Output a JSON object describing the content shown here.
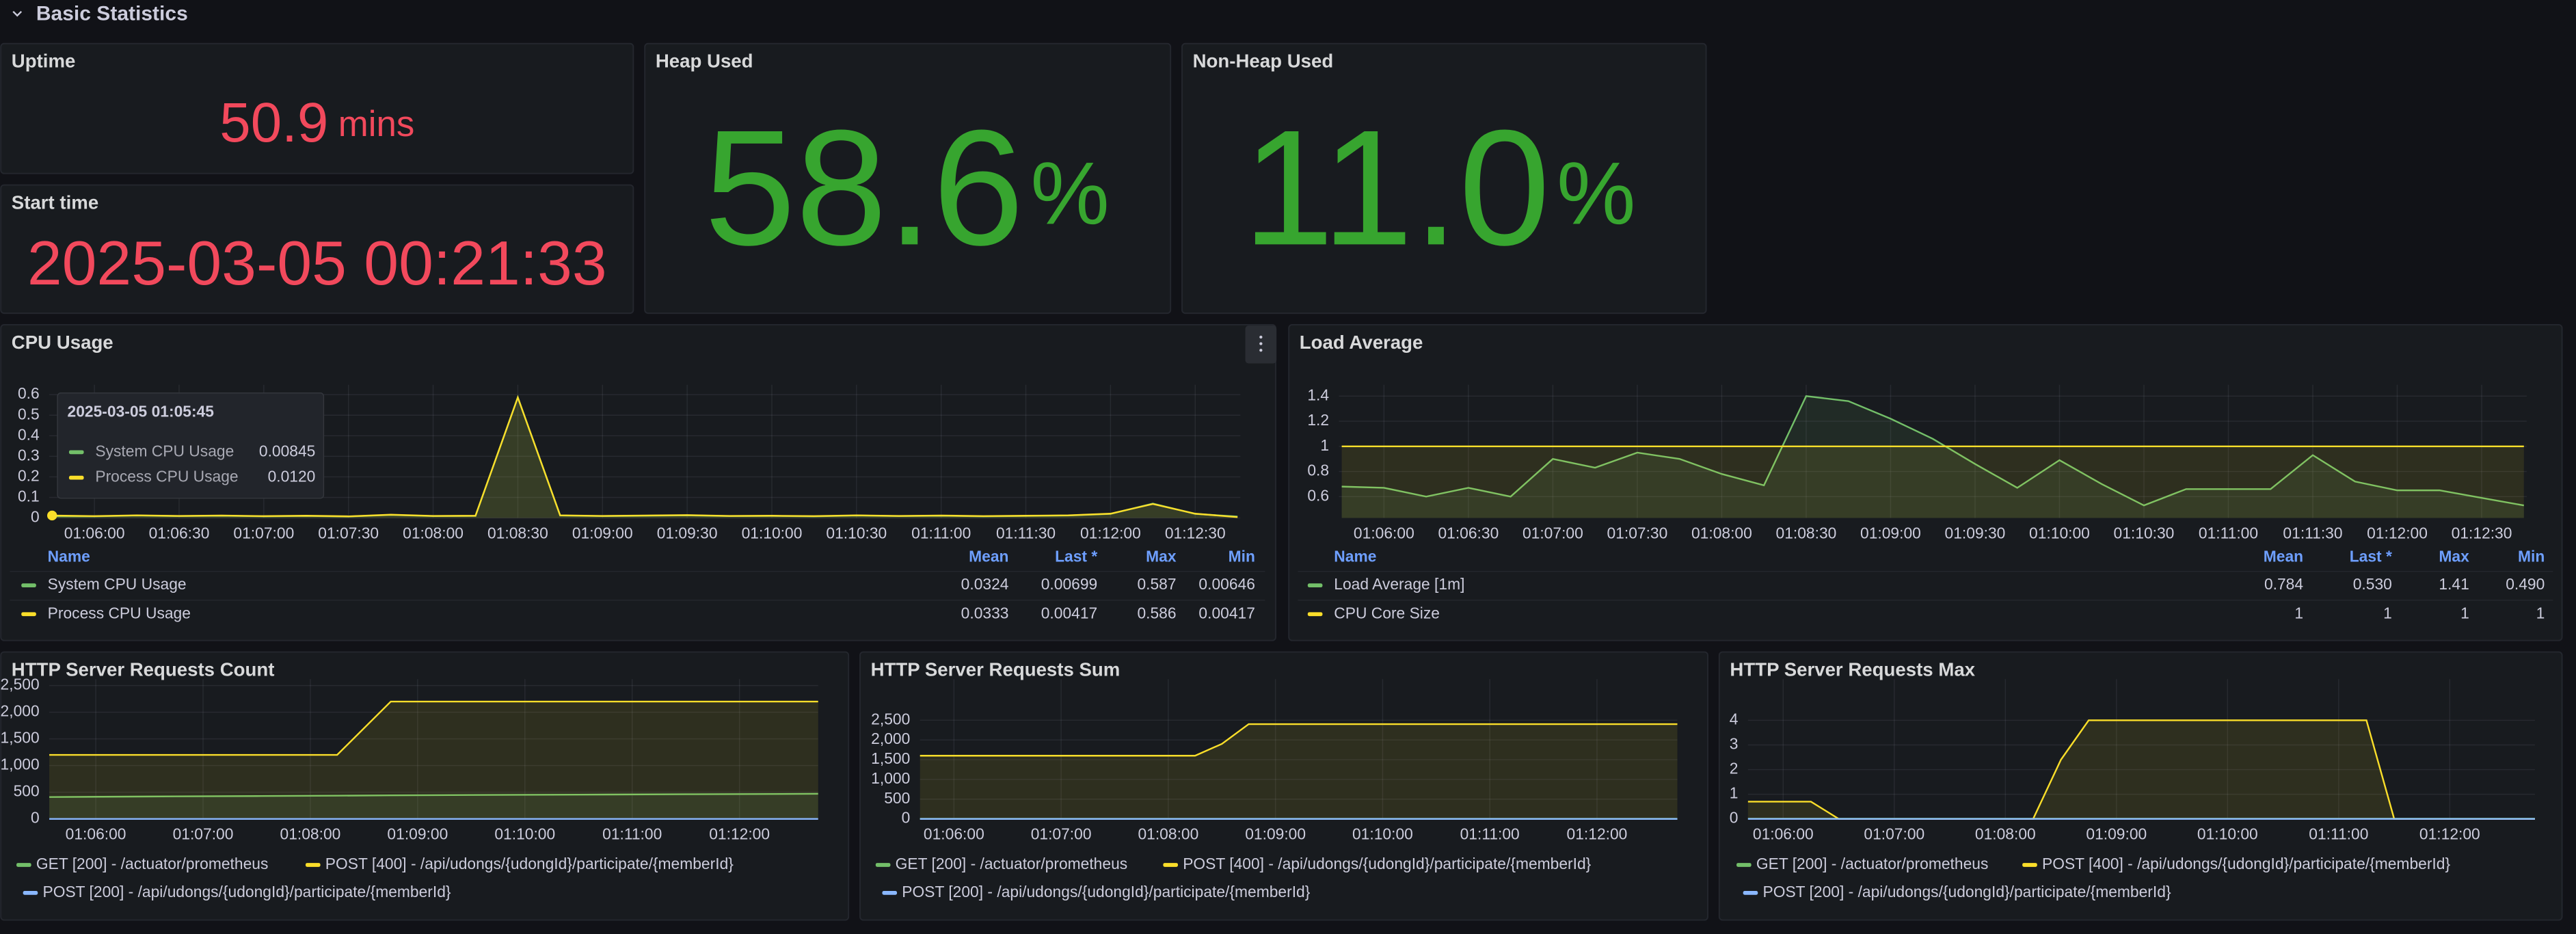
{
  "section": "Basic Statistics",
  "stats": [
    {
      "title": "Uptime",
      "value": "50.9",
      "unit": "mins"
    },
    {
      "title": "Start time",
      "value": "2025-03-05 00:21:33"
    },
    {
      "title": "Heap Used",
      "value": "58.6",
      "unit": "%"
    },
    {
      "title": "Non-Heap Used",
      "value": "11.0",
      "unit": "%"
    }
  ],
  "chart_data": [
    {
      "type": "line",
      "title": "CPU Usage",
      "x": [
        "01:05:45",
        "01:06:00",
        "01:06:15",
        "01:06:30",
        "01:06:45",
        "01:07:00",
        "01:07:15",
        "01:07:30",
        "01:07:45",
        "01:08:00",
        "01:08:15",
        "01:08:30",
        "01:08:45",
        "01:09:00",
        "01:09:15",
        "01:09:30",
        "01:09:45",
        "01:10:00",
        "01:10:15",
        "01:10:30",
        "01:10:45",
        "01:11:00",
        "01:11:15",
        "01:11:30",
        "01:11:45",
        "01:12:00",
        "01:12:15",
        "01:12:30",
        "01:12:45"
      ],
      "xlim": [
        "01:05:44",
        "01:12:46"
      ],
      "xticks": [
        "01:06:00",
        "01:06:30",
        "01:07:00",
        "01:07:30",
        "01:08:00",
        "01:08:30",
        "01:09:00",
        "01:09:30",
        "01:10:00",
        "01:10:30",
        "01:11:00",
        "01:11:30",
        "01:12:00",
        "01:12:30"
      ],
      "ylim": [
        0,
        0.648
      ],
      "yticks": [
        0,
        0.1,
        0.2,
        0.3,
        0.4,
        0.5,
        0.6
      ],
      "grid": true,
      "series": [
        {
          "name": "System CPU Usage",
          "color": "#73bf69",
          "values": [
            0.00845,
            0.008,
            0.012,
            0.009,
            0.011,
            0.008,
            0.01,
            0.007,
            0.015,
            0.009,
            0.01,
            0.587,
            0.012,
            0.009,
            0.011,
            0.013,
            0.009,
            0.01,
            0.008,
            0.012,
            0.009,
            0.011,
            0.008,
            0.01,
            0.012,
            0.02,
            0.07,
            0.02,
            0.00699
          ]
        },
        {
          "name": "Process CPU Usage",
          "color": "#fade2a",
          "values": [
            0.012,
            0.009,
            0.013,
            0.01,
            0.012,
            0.009,
            0.011,
            0.008,
            0.016,
            0.01,
            0.011,
            0.586,
            0.013,
            0.01,
            0.012,
            0.014,
            0.01,
            0.011,
            0.009,
            0.013,
            0.01,
            0.012,
            0.009,
            0.011,
            0.013,
            0.021,
            0.068,
            0.021,
            0.00417
          ]
        }
      ],
      "legend_columns": [
        "Name",
        "Mean",
        "Last *",
        "Max",
        "Min"
      ],
      "legend_stats": [
        [
          "0.0324",
          "0.00699",
          "0.587",
          "0.00646"
        ],
        [
          "0.0333",
          "0.00417",
          "0.586",
          "0.00417"
        ]
      ],
      "tooltip": {
        "time": "2025-03-05 01:05:45",
        "values": [
          "0.00845",
          "0.0120"
        ]
      }
    },
    {
      "type": "line",
      "title": "Load Average",
      "x": [
        "01:05:45",
        "01:06:00",
        "01:06:15",
        "01:06:30",
        "01:06:45",
        "01:07:00",
        "01:07:15",
        "01:07:30",
        "01:07:45",
        "01:08:00",
        "01:08:15",
        "01:08:30",
        "01:08:45",
        "01:09:00",
        "01:09:15",
        "01:09:30",
        "01:09:45",
        "01:10:00",
        "01:10:15",
        "01:10:30",
        "01:10:45",
        "01:11:00",
        "01:11:15",
        "01:11:30",
        "01:11:45",
        "01:12:00",
        "01:12:15",
        "01:12:30",
        "01:12:45"
      ],
      "xlim": [
        "01:05:44",
        "01:12:46"
      ],
      "xticks": [
        "01:06:00",
        "01:06:30",
        "01:07:00",
        "01:07:30",
        "01:08:00",
        "01:08:30",
        "01:09:00",
        "01:09:30",
        "01:10:00",
        "01:10:30",
        "01:11:00",
        "01:11:30",
        "01:12:00",
        "01:12:30"
      ],
      "ylim": [
        0.43,
        1.49
      ],
      "yticks": [
        0.6,
        0.8,
        1,
        1.2,
        1.4
      ],
      "grid": true,
      "series": [
        {
          "name": "Load Average [1m]",
          "color": "#73bf69",
          "values": [
            0.68,
            0.67,
            0.6,
            0.67,
            0.6,
            0.9,
            0.83,
            0.95,
            0.9,
            0.78,
            0.69,
            1.4,
            1.36,
            1.22,
            1.06,
            0.86,
            0.67,
            0.89,
            0.7,
            0.53,
            0.66,
            0.66,
            0.66,
            0.93,
            0.72,
            0.65,
            0.65,
            0.59,
            0.53
          ]
        },
        {
          "name": "CPU Core Size",
          "color": "#fade2a",
          "values": [
            1,
            1,
            1,
            1,
            1,
            1,
            1,
            1,
            1,
            1,
            1,
            1,
            1,
            1,
            1,
            1,
            1,
            1,
            1,
            1,
            1,
            1,
            1,
            1,
            1,
            1,
            1,
            1,
            1
          ]
        }
      ],
      "legend_columns": [
        "Name",
        "Mean",
        "Last *",
        "Max",
        "Min"
      ],
      "legend_stats": [
        [
          "0.784",
          "0.530",
          "1.41",
          "0.490"
        ],
        [
          "1",
          "1",
          "1",
          "1"
        ]
      ]
    },
    {
      "type": "line",
      "title": "HTTP Server Requests Count",
      "x": [
        "01:05:34",
        "01:06:30",
        "01:07:30",
        "01:08:15",
        "01:08:45",
        "01:09:30",
        "01:10:30",
        "01:11:30",
        "01:12:44"
      ],
      "xlim": [
        "01:05:34",
        "01:12:44"
      ],
      "xticks": [
        "01:06:00",
        "01:07:00",
        "01:08:00",
        "01:09:00",
        "01:10:00",
        "01:11:00",
        "01:12:00"
      ],
      "ylim": [
        0,
        2620
      ],
      "yticks": [
        0,
        500,
        {
          "value": 1000,
          "label": "1,000"
        },
        {
          "value": 1500,
          "label": "1,500"
        },
        {
          "value": 2000,
          "label": "2,000"
        },
        {
          "value": 2500,
          "label": "2,500"
        }
      ],
      "grid": true,
      "series": [
        {
          "name": "GET [200] - /actuator/prometheus",
          "color": "#73bf69",
          "values": [
            410,
            420,
            428,
            435,
            442,
            448,
            455,
            462,
            470
          ]
        },
        {
          "name": "POST [400] - /api/udongs/{udongId}/participate/{memberId}",
          "color": "#fade2a",
          "values": [
            1200,
            1200,
            1200,
            1200,
            2200,
            2200,
            2200,
            2200,
            2200
          ]
        },
        {
          "name": "POST [200] - /api/udongs/{udongId}/participate/{memberId}",
          "color": "#8ab8ff",
          "values": [
            0,
            0,
            0,
            0,
            0,
            0,
            0,
            0,
            0
          ]
        }
      ]
    },
    {
      "type": "line",
      "title": "HTTP Server Requests Sum",
      "x": [
        "01:05:41",
        "01:08:15",
        "01:08:30",
        "01:08:45",
        "01:12:45"
      ],
      "xlim": [
        "01:05:41",
        "01:12:45"
      ],
      "xticks": [
        "01:06:00",
        "01:07:00",
        "01:08:00",
        "01:09:00",
        "01:10:00",
        "01:11:00",
        "01:12:00"
      ],
      "ylim": [
        0,
        3540
      ],
      "yticks": [
        0,
        500,
        {
          "value": 1000,
          "label": "1,000"
        },
        {
          "value": 1500,
          "label": "1,500"
        },
        {
          "value": 2000,
          "label": "2,000"
        },
        {
          "value": 2500,
          "label": "2,500"
        }
      ],
      "grid": true,
      "series": [
        {
          "name": "GET [200] - /actuator/prometheus",
          "color": "#73bf69",
          "values": [
            3,
            3,
            3,
            3,
            3
          ]
        },
        {
          "name": "POST [400] - /api/udongs/{udongId}/participate/{memberId}",
          "color": "#fade2a",
          "values": [
            1600,
            1600,
            1900,
            2400,
            2400
          ]
        },
        {
          "name": "POST [200] - /api/udongs/{udongId}/participate/{memberId}",
          "color": "#8ab8ff",
          "values": [
            0,
            0,
            0,
            0,
            0
          ]
        }
      ]
    },
    {
      "type": "line",
      "title": "HTTP Server Requests Max",
      "x": [
        "01:05:41",
        "01:06:15",
        "01:06:30",
        "01:08:15",
        "01:08:30",
        "01:08:45",
        "01:11:15",
        "01:11:30",
        "01:12:46"
      ],
      "xlim": [
        "01:05:41",
        "01:12:46"
      ],
      "xticks": [
        "01:06:00",
        "01:07:00",
        "01:08:00",
        "01:09:00",
        "01:10:00",
        "01:11:00",
        "01:12:00"
      ],
      "ylim": [
        0,
        5.67
      ],
      "yticks": [
        0,
        1,
        2,
        3,
        4
      ],
      "grid": true,
      "series": [
        {
          "name": "GET [200] - /actuator/prometheus",
          "color": "#73bf69",
          "values": [
            0.01,
            0.01,
            0.01,
            0.01,
            0.01,
            0.01,
            0.01,
            0.01,
            0.01
          ]
        },
        {
          "name": "POST [400] - /api/udongs/{udongId}/participate/{memberId}",
          "color": "#fade2a",
          "values": [
            0.7,
            0.7,
            0,
            0,
            2.4,
            4,
            4,
            0,
            0
          ]
        },
        {
          "name": "POST [200] - /api/udongs/{udongId}/participate/{memberId}",
          "color": "#8ab8ff",
          "values": [
            0,
            0,
            0,
            0,
            0,
            0,
            0,
            0,
            0
          ]
        }
      ]
    }
  ]
}
